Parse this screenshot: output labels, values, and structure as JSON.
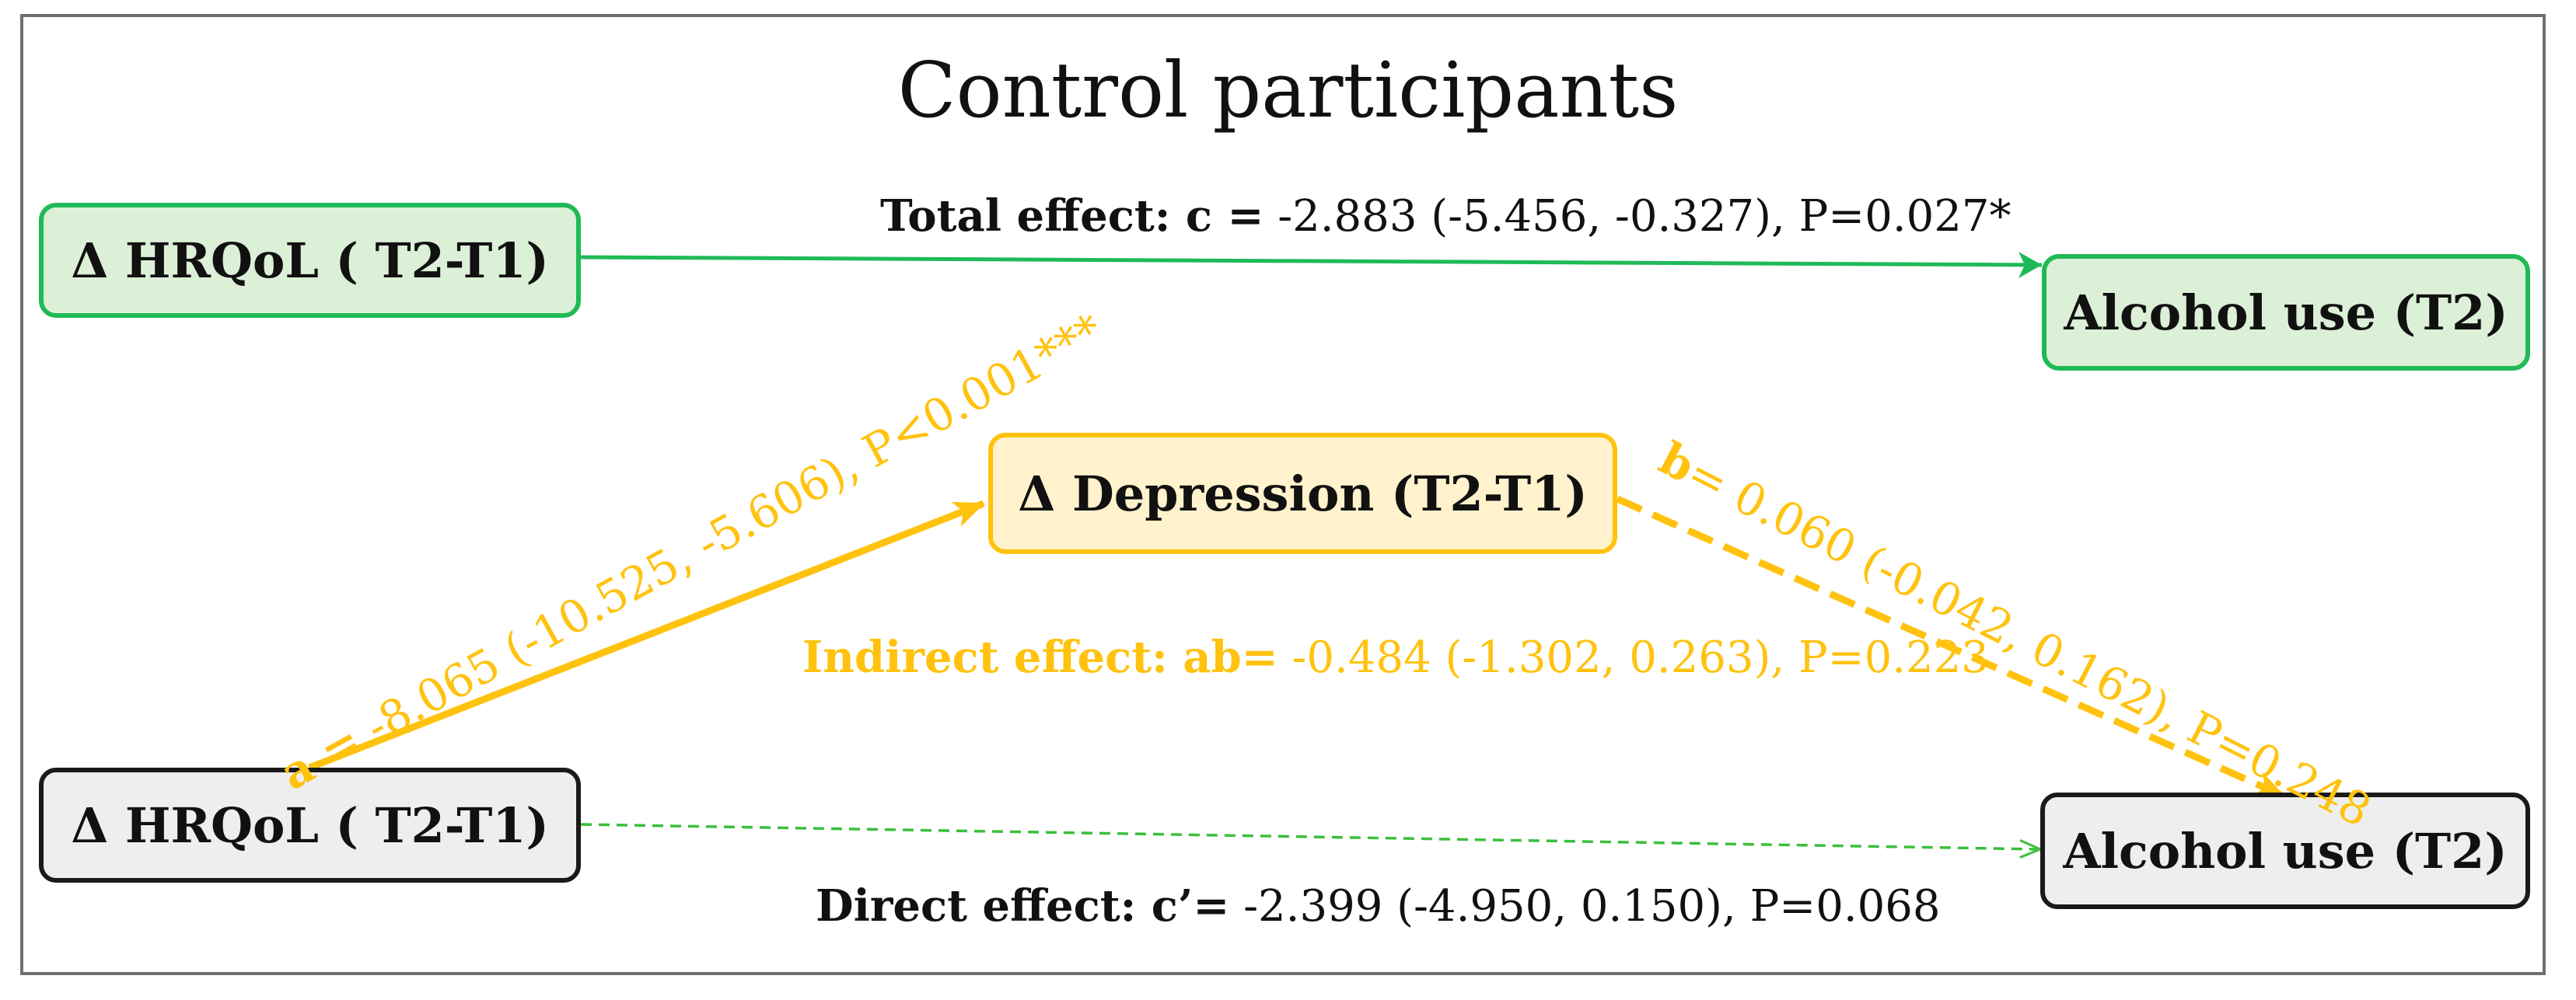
{
  "title": "Control participants",
  "colors": {
    "green": "#1fba57",
    "green_fill": "#dcf0d7",
    "gold": "#ffc20f",
    "gold_fill": "#fff2cc",
    "grey_fill": "#eeeeee",
    "frame": "#6f6f6f",
    "text": "#111111"
  },
  "nodes": {
    "top_predictor": "Δ HRQoL ( T2-T1)",
    "top_outcome": "Alcohol use (T2)",
    "mediator": "Δ Depression (T2-T1)",
    "bottom_predictor": "Δ HRQoL ( T2-T1)",
    "bottom_outcome": "Alcohol use (T2)"
  },
  "paths": {
    "total": {
      "label": "Total effect: c =",
      "value": "-2.883 (-5.456, -0.327), P=0.027*"
    },
    "a": {
      "label": "a =",
      "value": "-8.065 (-10.525, -5.606), P<0.001***"
    },
    "b": {
      "label": "b",
      "value": "= 0.060 (-0.042,  0.162), P=0.248"
    },
    "indirect": {
      "label": "Indirect effect: ab=",
      "value": "-0.484 (-1.302, 0.263), P=0.223"
    },
    "direct": {
      "label": "Direct effect: c’=",
      "value": "-2.399 (-4.950,  0.150), P=0.068"
    }
  }
}
